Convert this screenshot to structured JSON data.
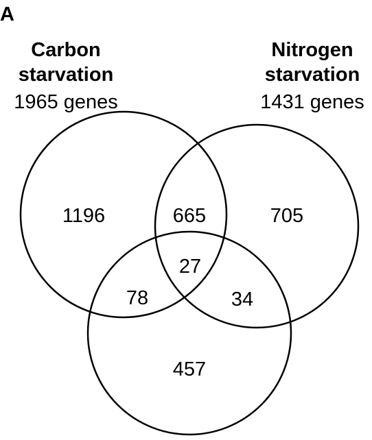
{
  "panel_label": "A",
  "sets": {
    "carbon": {
      "title_line1": "Carbon",
      "title_line2": "starvation",
      "count": "1965 genes"
    },
    "nitrogen": {
      "title_line1": "Nitrogen",
      "title_line2": "starvation",
      "count": "1431 genes"
    }
  },
  "regions": {
    "carbon_only": "1196",
    "carbon_nitrogen": "665",
    "nitrogen_only": "705",
    "all_three": "27",
    "carbon_third": "78",
    "nitrogen_third": "34",
    "third_only": "457"
  },
  "colors": {
    "stroke": "#000000",
    "text": "#000000",
    "background": "#ffffff"
  }
}
